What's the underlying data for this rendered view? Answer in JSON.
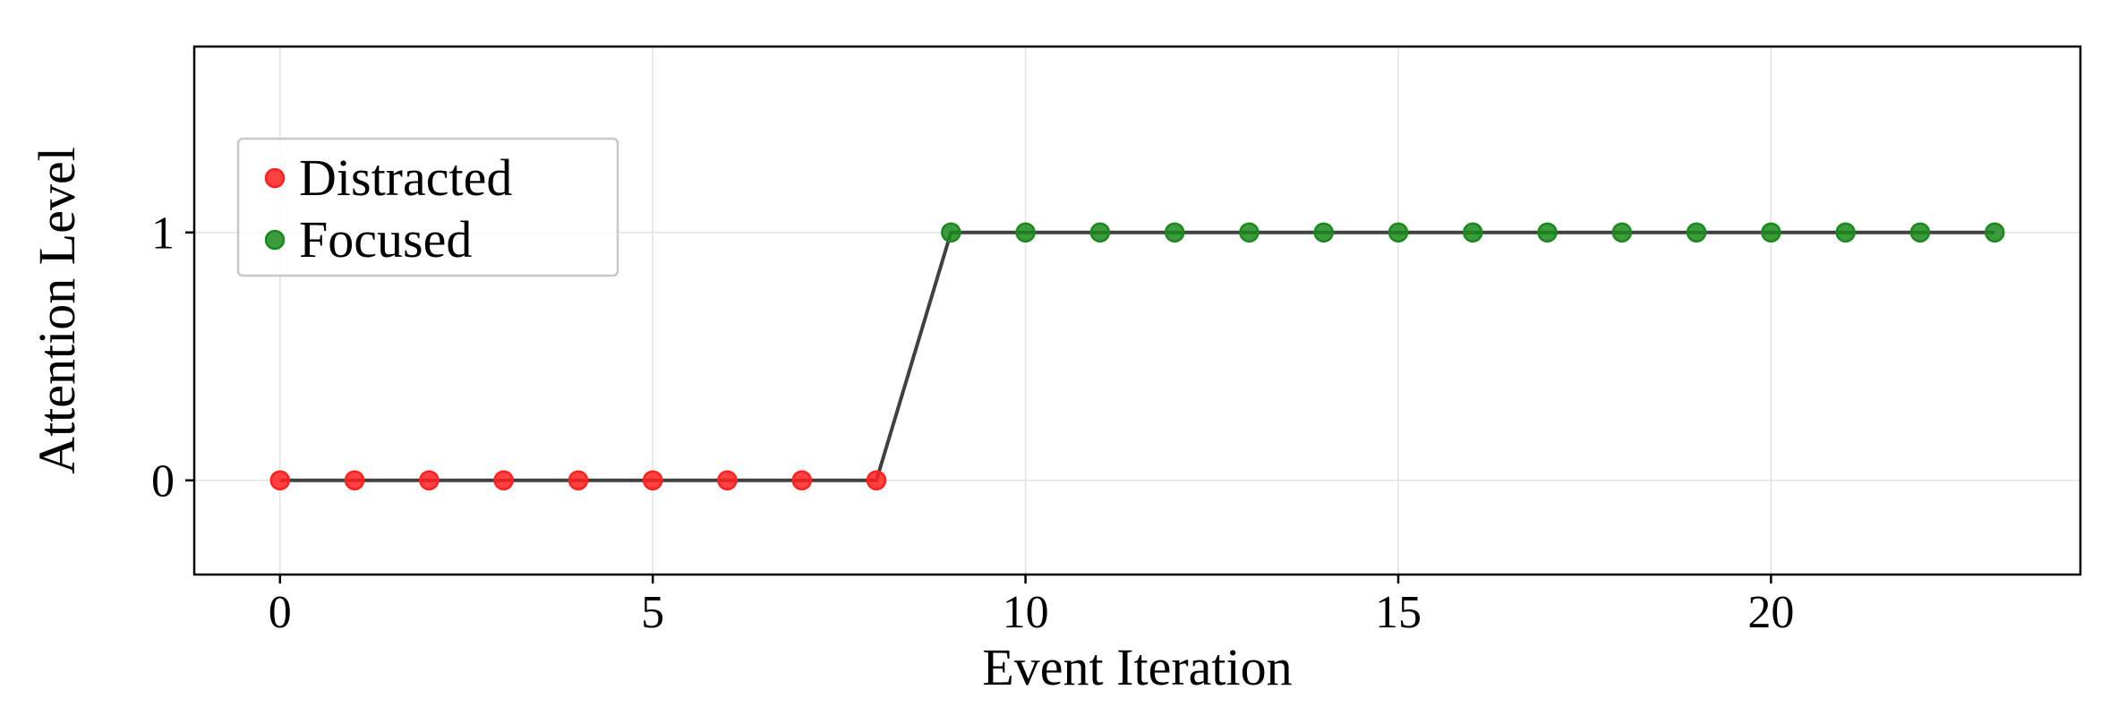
{
  "chart_data": {
    "type": "line",
    "xlabel": "Event Iteration",
    "ylabel": "Attention Level",
    "xlim": [
      -1.15,
      24.15
    ],
    "ylim": [
      -0.38,
      1.75
    ],
    "xticks": [
      0,
      5,
      10,
      15,
      20
    ],
    "yticks": [
      0,
      1
    ],
    "xtick_labels": [
      "0",
      "5",
      "10",
      "15",
      "20"
    ],
    "ytick_labels": [
      "0",
      "1"
    ],
    "grid": true,
    "legend_position": "upper-left",
    "x": [
      0,
      1,
      2,
      3,
      4,
      5,
      6,
      7,
      8,
      9,
      10,
      11,
      12,
      13,
      14,
      15,
      16,
      17,
      18,
      19,
      20,
      21,
      22,
      23
    ],
    "y": [
      0,
      0,
      0,
      0,
      0,
      0,
      0,
      0,
      0,
      1,
      1,
      1,
      1,
      1,
      1,
      1,
      1,
      1,
      1,
      1,
      1,
      1,
      1,
      1
    ],
    "line_color": "#404040",
    "series": [
      {
        "name": "Distracted",
        "color": "#ff2020",
        "x": [
          0,
          1,
          2,
          3,
          4,
          5,
          6,
          7,
          8
        ],
        "values": [
          0,
          0,
          0,
          0,
          0,
          0,
          0,
          0,
          0
        ]
      },
      {
        "name": "Focused",
        "color": "#1a8a1a",
        "x": [
          9,
          10,
          11,
          12,
          13,
          14,
          15,
          16,
          17,
          18,
          19,
          20,
          21,
          22,
          23
        ],
        "values": [
          1,
          1,
          1,
          1,
          1,
          1,
          1,
          1,
          1,
          1,
          1,
          1,
          1,
          1,
          1
        ]
      }
    ]
  }
}
